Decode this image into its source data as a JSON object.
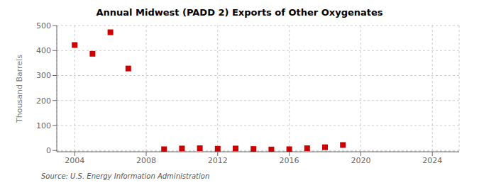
{
  "chart_data": {
    "type": "scatter",
    "title": "Annual Midwest (PADD 2) Exports of Other Oxygenates",
    "y_label": "Thousand Barrels",
    "annotation": "Source: U.S. Energy Information Administration",
    "x": [
      2004,
      2005,
      2006,
      2007,
      2009,
      2010,
      2011,
      2012,
      2013,
      2014,
      2015,
      2016,
      2017,
      2018,
      2019
    ],
    "values": [
      422,
      387,
      473,
      328,
      5,
      8,
      9,
      7,
      8,
      6,
      4,
      5,
      9,
      13,
      22
    ],
    "color": "#cc0000",
    "marker": "square",
    "xlim": [
      2003,
      2025.5
    ],
    "ylim": [
      -5,
      500
    ],
    "xticks": [
      2004,
      2008,
      2012,
      2016,
      2020,
      2024
    ],
    "yticks": [
      0,
      100,
      200,
      300,
      400,
      500
    ],
    "grid": true
  }
}
